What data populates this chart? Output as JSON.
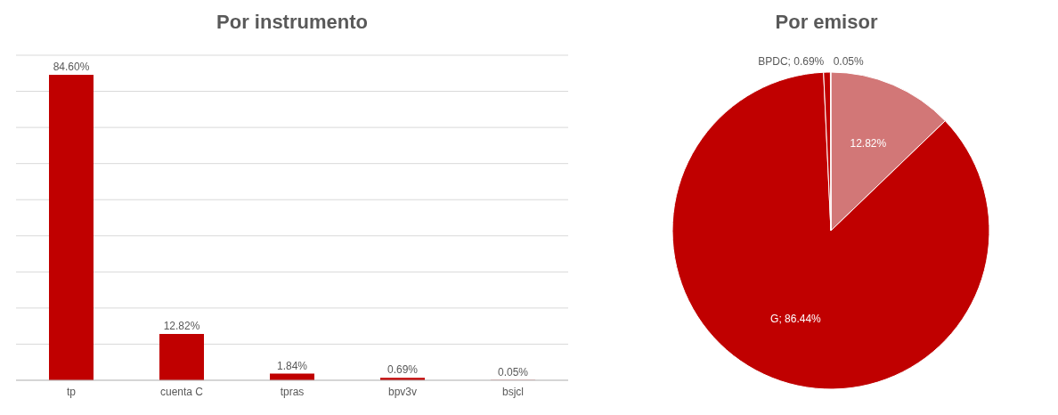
{
  "chart_data": [
    {
      "type": "bar",
      "title": "Por instrumento",
      "categories": [
        "tp",
        "cuenta C",
        "tpras",
        "bpv3v",
        "bsjcl"
      ],
      "values": [
        84.6,
        12.82,
        1.84,
        0.69,
        0.05
      ],
      "color": "#c00000",
      "value_labels": [
        "84.60%",
        "12.82%",
        "1.84%",
        "0.69%",
        "0.05%"
      ],
      "grid": "y",
      "tick_labels": "x"
    },
    {
      "type": "pie",
      "title": "Por emisor",
      "categories": [
        null,
        "G",
        "BPDC",
        null
      ],
      "values": [
        12.82,
        86.44,
        0.69,
        0.05
      ],
      "colors": [
        "#d27777",
        "#c00000",
        "#c00000",
        "#c00000"
      ],
      "value_labels": [
        "12.82%",
        "86.44%",
        "0.69%",
        "0.05%"
      ]
    }
  ]
}
